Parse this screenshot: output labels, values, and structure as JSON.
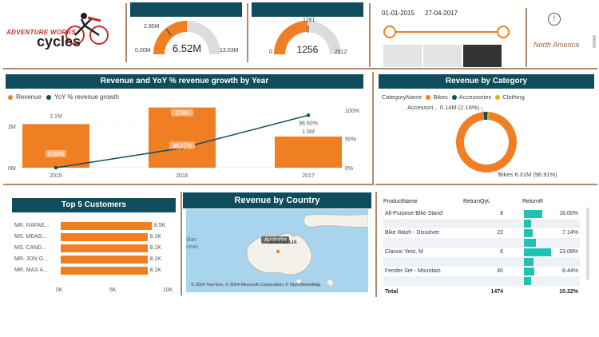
{
  "logo": {
    "line1": "ADVENTURE WORKS",
    "line2": "cycles"
  },
  "colors": {
    "accent": "#f07f24",
    "teal": "#0f4c5c",
    "border": "#b08a6c",
    "green": "#21c2b3"
  },
  "gauge1": {
    "value": "6.52M",
    "min": "0.00M",
    "max": "13.03M",
    "target": "2.95M",
    "fraction": 0.5
  },
  "gauge2": {
    "value": "1256",
    "min": "0",
    "max": "2512",
    "target": "1281",
    "fraction": 0.5
  },
  "date_slicer": {
    "start": "01-01-2015",
    "end": "27-04-2017"
  },
  "region": "North America",
  "rev_year": {
    "title": "Revenue and YoY % revenue growth by Year",
    "legend": [
      "Revenue",
      "YoY % revenue growth"
    ],
    "y_left": [
      "2M",
      "0M"
    ],
    "y_right": [
      "100%",
      "50%",
      "0%"
    ],
    "labels": {
      "y2015_rev": "2.1M",
      "y2015_pct": "0.00%",
      "y2016_rev": "2.9M",
      "y2016_pct": "36.17%",
      "y2017_rev": "1.5M",
      "y2017_pct": "96.60%"
    }
  },
  "rev_category": {
    "title": "Revenue by Category",
    "legend_title": "CategoryName",
    "legend": [
      "Bikes",
      "Accessories",
      "Clothing"
    ],
    "label_accessories": "Accessori... 0.14M (2.16%)",
    "label_bikes": "Bikes 6.31M (96.91%)"
  },
  "top_customers": {
    "title": "Top 5 Customers",
    "rows": [
      {
        "name": "MR. RAFAE...",
        "value": "8.5K"
      },
      {
        "name": "MS. MEAG...",
        "value": "8.1K"
      },
      {
        "name": "MS. CAND...",
        "value": "8.1K"
      },
      {
        "name": "MR. JON G...",
        "value": "8.1K"
      },
      {
        "name": "MR. MAX A...",
        "value": "8.1K"
      }
    ],
    "axis": [
      "0K",
      "5K",
      "10K"
    ]
  },
  "chart_data": [
    {
      "type": "bar",
      "title": "Revenue and YoY % revenue growth by Year",
      "categories": [
        "2015",
        "2016",
        "2017"
      ],
      "series": [
        {
          "name": "Revenue",
          "values": [
            2.1,
            2.9,
            1.5
          ]
        },
        {
          "name": "YoY % revenue growth",
          "values": [
            0.0,
            36.17,
            96.6
          ]
        }
      ],
      "ylim": [
        0,
        3
      ],
      "y2lim": [
        0,
        100
      ]
    },
    {
      "type": "pie",
      "title": "Revenue by Category",
      "categories": [
        "Bikes",
        "Accessories",
        "Clothing"
      ],
      "values": [
        96.91,
        2.16,
        0.93
      ]
    },
    {
      "type": "bar",
      "title": "Top 5 Customers",
      "categories": [
        "MR. RAFAE...",
        "MS. MEAG...",
        "MS. CAND...",
        "MR. JON G...",
        "MR. MAX A..."
      ],
      "values": [
        8.5,
        8.1,
        8.1,
        8.1,
        8.1
      ],
      "xlim": [
        0,
        10
      ]
    }
  ],
  "map": {
    "title": "Revenue by Country",
    "label": "Australia",
    "sublabel": "AUSTRALIA",
    "side_text": "dian\ncean",
    "attribution": "© 2024 TomTom, © 2024 Microsoft Corporation, © OpenStreetMap"
  },
  "table": {
    "headers": [
      "ProductName",
      "ReturnQyt.",
      "ReturnR"
    ],
    "rows": [
      {
        "name": "All-Purpose Bike Stand",
        "qty": "8",
        "rate": "16.00%",
        "frac": 0.69
      },
      {
        "name": "",
        "qty": "",
        "rate": "",
        "frac": 0.26
      },
      {
        "name": "Bike Wash - Dissolver",
        "qty": "22",
        "rate": "7.14%",
        "frac": 0.31
      },
      {
        "name": "",
        "qty": "",
        "rate": "",
        "frac": 0.45
      },
      {
        "name": "Classic Vest, M",
        "qty": "6",
        "rate": "23.08%",
        "frac": 1.0
      },
      {
        "name": "",
        "qty": "",
        "rate": "",
        "frac": 0.35
      },
      {
        "name": "Fender Set - Mountain",
        "qty": "40",
        "rate": "8.44%",
        "frac": 0.37
      },
      {
        "name": "",
        "qty": "",
        "rate": "",
        "frac": 0.27
      }
    ],
    "total_label": "Total",
    "total_qty": "1474",
    "total_rate": "10.22%"
  }
}
